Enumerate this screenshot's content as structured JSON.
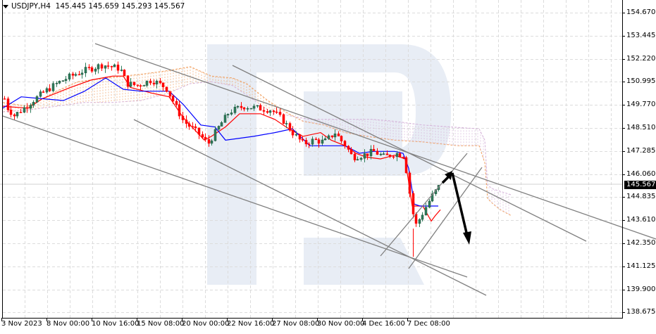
{
  "header": {
    "symbol": "USDJPY,H4",
    "ohlc": "145.445 145.659 145.293 145.567"
  },
  "current_price": "145.567",
  "colors": {
    "bull_candle": "#2e7d5b",
    "bear_candle": "#ff0000",
    "tenkan": "#ff0000",
    "kijun": "#0000ff",
    "senkou_a": "#f0a060",
    "senkou_b": "#d4b0d8",
    "trendline": "#808080",
    "arrow": "#000000",
    "grid": "#dcdcdc",
    "watermark": "#e8edf5"
  },
  "chart_data": {
    "type": "candlestick",
    "title": "USDJPY,H4",
    "ohlc_last": {
      "open": 145.445,
      "high": 145.659,
      "low": 145.293,
      "close": 145.567
    },
    "y_ticks": [
      "154.670",
      "153.445",
      "152.220",
      "150.995",
      "149.770",
      "148.510",
      "147.285",
      "146.060",
      "144.835",
      "143.610",
      "142.350",
      "141.125",
      "139.900",
      "138.675"
    ],
    "x_ticks": [
      "3 Nov 2023",
      "8 Nov 00:00",
      "10 Nov 16:00",
      "15 Nov 08:00",
      "20 Nov 00:00",
      "22 Nov 16:00",
      "27 Nov 08:00",
      "30 Nov 00:00",
      "4 Dec 16:00",
      "7 Dec 08:00"
    ],
    "ylim": [
      138.675,
      154.67
    ],
    "indicators": [
      "Ichimoku Tenkan-sen (red)",
      "Ichimoku Kijun-sen (blue)",
      "Ichimoku Cloud (dashed orange/violet)"
    ],
    "annotations": [
      "descending channel trend lines",
      "ascending channel lines",
      "up arrow to ~146.06",
      "down arrow to ~142.3"
    ],
    "approx_closes": [
      150.6,
      149.4,
      149.6,
      150.0,
      150.4,
      150.9,
      151.5,
      151.9,
      151.6,
      150.8,
      150.6,
      150.9,
      150.2,
      149.0,
      148.8,
      147.8,
      148.1,
      149.4,
      149.7,
      149.6,
      149.2,
      148.4,
      148.2,
      147.3,
      147.8,
      147.1,
      146.6,
      147.4,
      147.2,
      147.1,
      147.3,
      144.7,
      143.2,
      144.2,
      145.0,
      145.57
    ]
  }
}
